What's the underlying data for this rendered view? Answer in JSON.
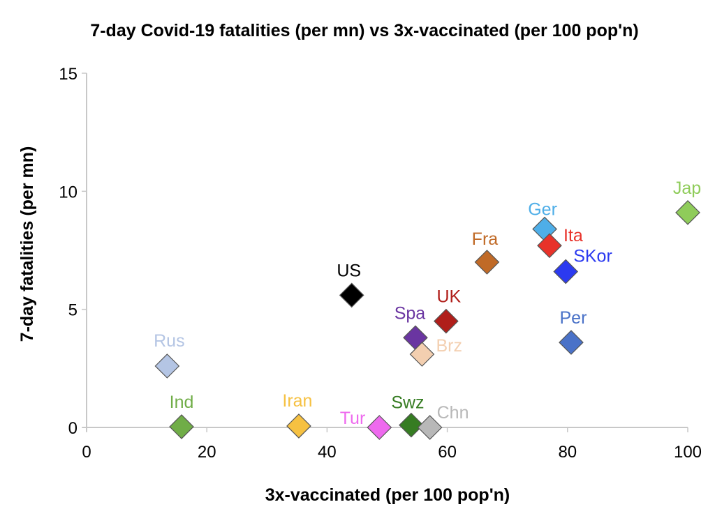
{
  "chart_data": {
    "type": "scatter",
    "title": "7-day Covid-19 fatalities (per mn) vs 3x-vaccinated (per 100 pop'n)",
    "xlabel": "3x-vaccinated (per 100 pop'n)",
    "ylabel": "7-day fatalities (per mn)",
    "xlim": [
      0,
      100
    ],
    "ylim": [
      0,
      15
    ],
    "xticks": [
      0,
      20,
      40,
      60,
      80,
      100
    ],
    "yticks": [
      0,
      5,
      10,
      15
    ],
    "grid": false,
    "legend": "none",
    "marker": "diamond",
    "points": [
      {
        "label": "Rus",
        "x": 13.4,
        "y": 2.6,
        "color": "#b4c5e4"
      },
      {
        "label": "Ind",
        "x": 15.8,
        "y": 0.03,
        "color": "#70ad47"
      },
      {
        "label": "Iran",
        "x": 35.3,
        "y": 0.06,
        "color": "#f6c142"
      },
      {
        "label": "US",
        "x": 44.1,
        "y": 5.6,
        "color": "#000000"
      },
      {
        "label": "Tur",
        "x": 48.7,
        "y": 0.0,
        "color": "#ee6aee"
      },
      {
        "label": "Swz",
        "x": 54.0,
        "y": 0.1,
        "color": "#367c22"
      },
      {
        "label": "Chn",
        "x": 57.1,
        "y": 0.0,
        "color": "#b8b8b8"
      },
      {
        "label": "Spa",
        "x": 54.7,
        "y": 3.8,
        "color": "#6a35a1"
      },
      {
        "label": "Brz",
        "x": 55.8,
        "y": 3.1,
        "color": "#f3cfb0"
      },
      {
        "label": "UK",
        "x": 59.8,
        "y": 4.5,
        "color": "#b01e1a"
      },
      {
        "label": "Fra",
        "x": 66.6,
        "y": 7.0,
        "color": "#c06a27"
      },
      {
        "label": "Ger",
        "x": 76.2,
        "y": 8.4,
        "color": "#4eaee8"
      },
      {
        "label": "Ita",
        "x": 77.0,
        "y": 7.7,
        "color": "#e8322a"
      },
      {
        "label": "SKor",
        "x": 79.7,
        "y": 6.6,
        "color": "#2b3af0"
      },
      {
        "label": "Per",
        "x": 80.6,
        "y": 3.6,
        "color": "#4a72c8"
      },
      {
        "label": "Jap",
        "x": 100.0,
        "y": 9.1,
        "color": "#8fcc5a"
      }
    ]
  }
}
